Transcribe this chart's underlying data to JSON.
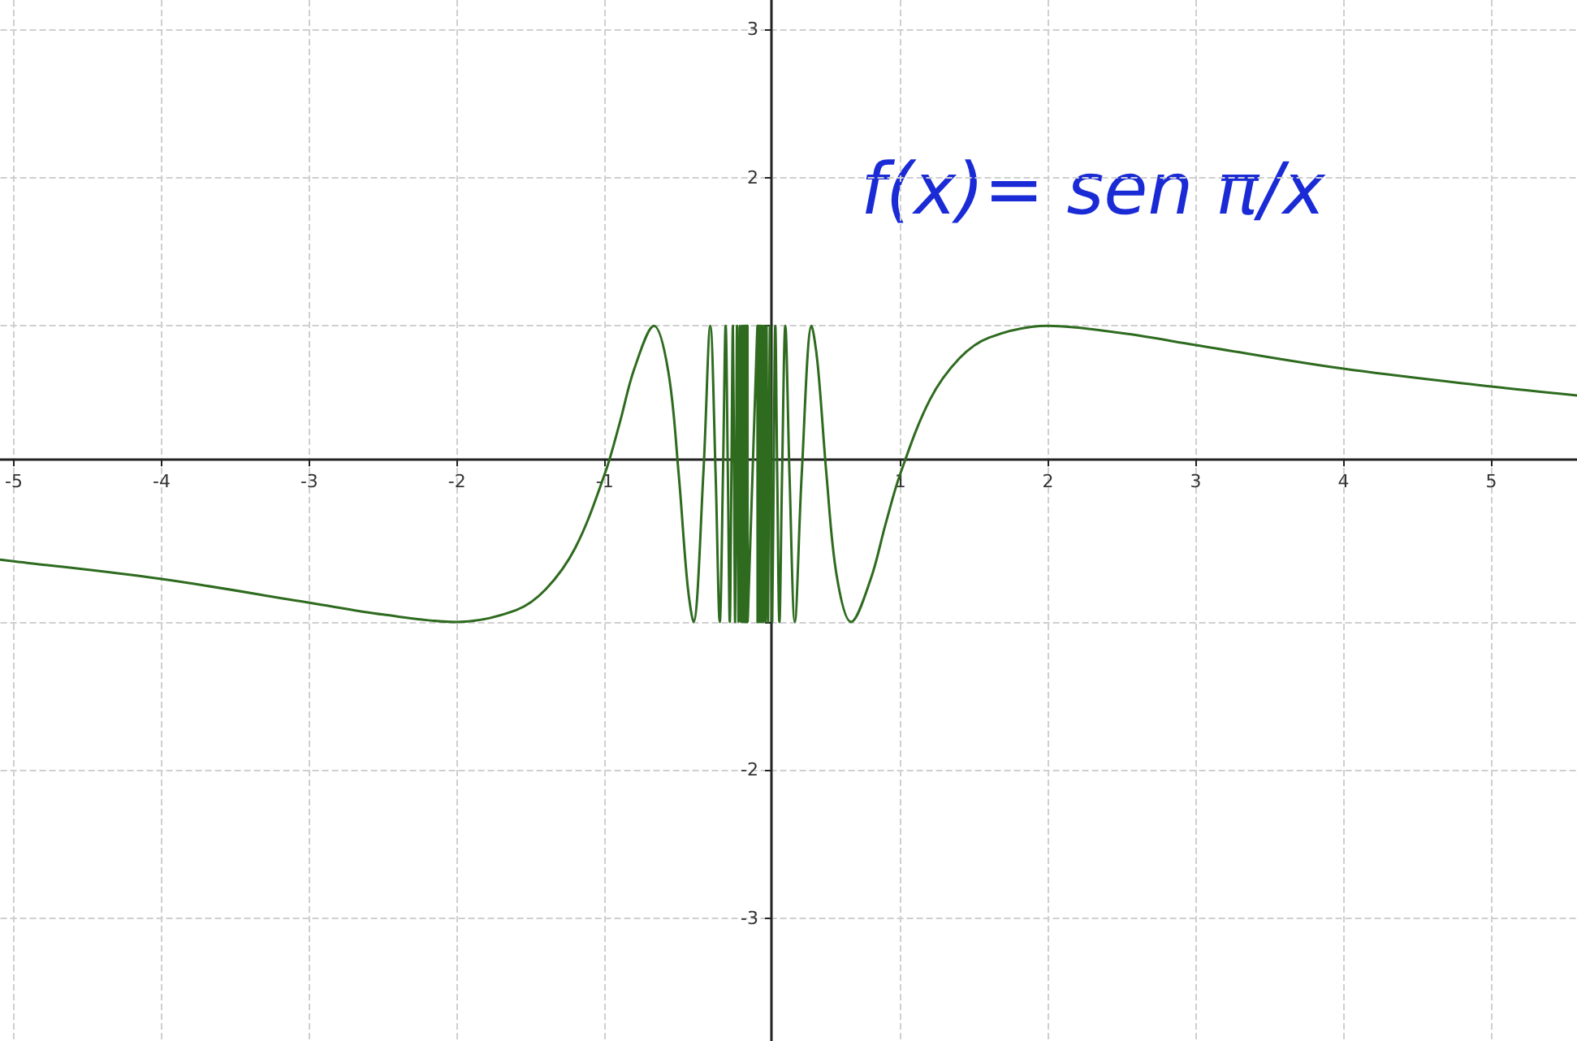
{
  "chart_data": {
    "type": "line",
    "annotations": [
      "f(x)= sen π/x"
    ],
    "xlim": [
      -5.09,
      5.58
    ],
    "ylim": [
      -3.83,
      3.2
    ],
    "xticks": [
      -5,
      -4,
      -3,
      -2,
      -1,
      1,
      2,
      3,
      4,
      5
    ],
    "yticks": [
      -3,
      -2,
      {
        "value": -1,
        "label": null
      },
      {
        "value": 1,
        "label": null
      },
      2,
      3
    ],
    "grid": true,
    "marker": "none",
    "line_style": "solid",
    "series": [
      {
        "color": "#2e6b1f",
        "x": [
          -5.09,
          -5,
          -4,
          -3,
          -2.5,
          -2,
          -1.6,
          -1.4,
          -1.2,
          -1,
          -0.9,
          -0.8,
          -0.667,
          -0.57,
          -0.5,
          -0.44,
          -0.4,
          -0.333,
          -0.286,
          -0.25,
          -0.222,
          -0.2,
          -0.182,
          -0.167,
          -0.154,
          -0.143,
          -0.133,
          -0.125,
          -0.118,
          -0.111,
          -0.105,
          -0.1,
          -0.095,
          -0.087,
          -0.08,
          -0.074,
          -0.069,
          -0.065,
          -0.061,
          -0.057,
          -0.054,
          -0.051,
          -0.049,
          -0.047,
          -0.044,
          -0.043,
          -0.041,
          -0.039,
          -0.038,
          -0.036,
          -0.035,
          -0.034,
          -0.033,
          0.033,
          0.034,
          0.035,
          0.036,
          0.038,
          0.039,
          0.041,
          0.043,
          0.044,
          0.047,
          0.049,
          0.051,
          0.054,
          0.057,
          0.061,
          0.065,
          0.069,
          0.074,
          0.08,
          0.087,
          0.095,
          0.1,
          0.105,
          0.111,
          0.118,
          0.125,
          0.133,
          0.143,
          0.154,
          0.167,
          0.182,
          0.2,
          0.222,
          0.25,
          0.286,
          0.333,
          0.4,
          0.44,
          0.5,
          0.57,
          0.667,
          0.8,
          0.9,
          1,
          1.2,
          1.4,
          1.6,
          2,
          2.5,
          3,
          4,
          5,
          5.58
        ],
        "values": [
          -0.58,
          -0.59,
          -0.71,
          -0.87,
          -0.95,
          -1,
          -0.92,
          -0.78,
          -0.5,
          0,
          0.34,
          0.71,
          1,
          0.69,
          0,
          -0.75,
          -1,
          0,
          1,
          0,
          -1,
          0,
          1,
          0,
          -1,
          0,
          1,
          0,
          -1,
          0,
          1,
          0,
          -1,
          1,
          -1,
          1,
          -1,
          1,
          -1,
          1,
          -1,
          1,
          -1,
          1,
          -1,
          1,
          -1,
          1,
          -1,
          1,
          -1,
          1,
          -1,
          1,
          -1,
          1,
          -1,
          1,
          -1,
          1,
          -1,
          1,
          -1,
          1,
          -1,
          1,
          -1,
          1,
          -1,
          1,
          -1,
          1,
          -1,
          1,
          0,
          -1,
          0,
          1,
          0,
          -1,
          0,
          1,
          0,
          -1,
          0,
          1,
          0,
          -1,
          0,
          1,
          0.75,
          0,
          -0.69,
          -1,
          -0.71,
          -0.34,
          0,
          0.5,
          0.78,
          0.92,
          1,
          0.95,
          0.87,
          0.71,
          0.59,
          0.53
        ]
      }
    ]
  }
}
